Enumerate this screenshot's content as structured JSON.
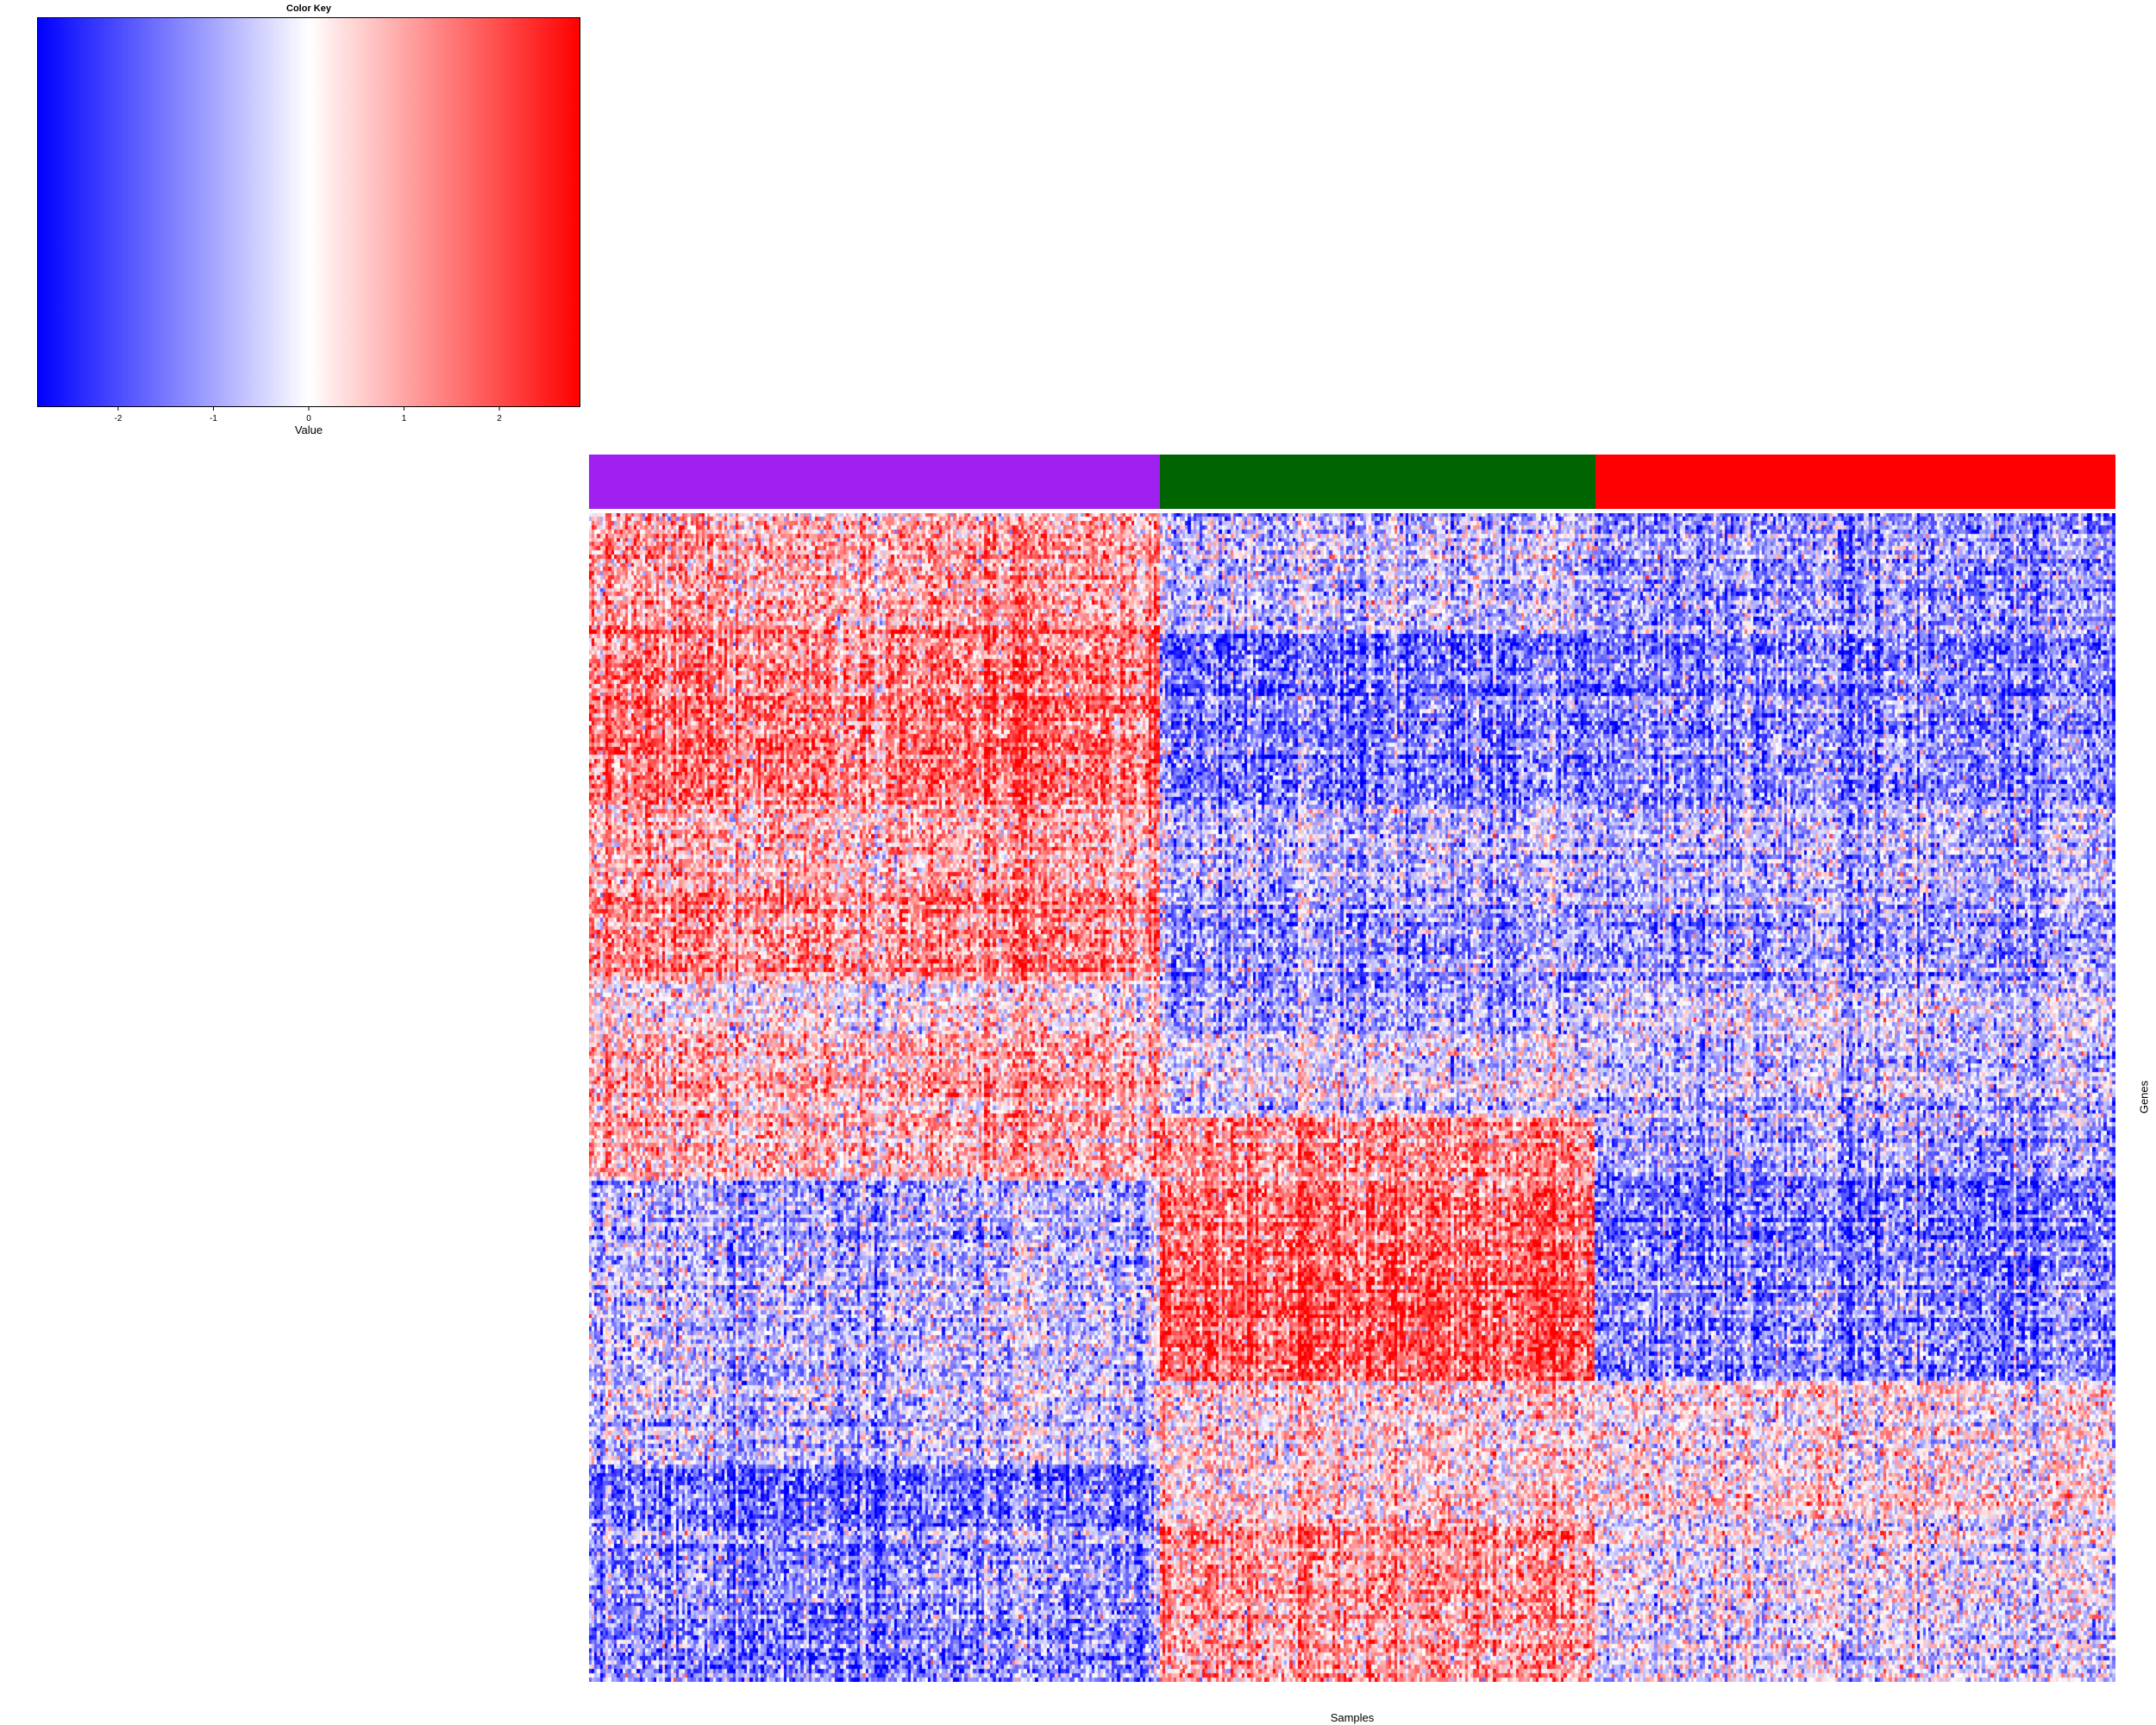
{
  "chart_data": [
    {
      "type": "color-scale",
      "title": "Color Key",
      "xlabel": "Value",
      "range": [
        -2.85,
        2.85
      ],
      "ticks": [
        -2,
        -1,
        0,
        1,
        2
      ],
      "tick_labels": [
        "-2",
        "-1",
        "0",
        "1",
        "2"
      ],
      "colors": {
        "low": "#0000ff",
        "mid": "#ffffff",
        "high": "#ff0000"
      }
    },
    {
      "type": "heatmap",
      "xlabel": "Samples",
      "ylabel": "Genes",
      "n_columns": 540,
      "n_rows": 280,
      "groups": [
        {
          "color": "#a020f0",
          "samples": 202
        },
        {
          "color": "#006400",
          "samples": 154
        },
        {
          "color": "#ff0000",
          "samples": 184
        }
      ],
      "row_blocks": [
        {
          "rows": 28,
          "means": [
            1.0,
            -0.6,
            -1.1
          ]
        },
        {
          "rows": 42,
          "means": [
            1.6,
            -1.4,
            -1.2
          ]
        },
        {
          "rows": 20,
          "means": [
            1.0,
            -0.6,
            -0.6
          ]
        },
        {
          "rows": 22,
          "means": [
            1.4,
            -1.0,
            -0.9
          ]
        },
        {
          "rows": 13,
          "means": [
            0.3,
            -0.8,
            -0.3
          ]
        },
        {
          "rows": 20,
          "means": [
            0.8,
            -0.3,
            -0.7
          ]
        },
        {
          "rows": 15,
          "means": [
            0.7,
            1.2,
            -1.1
          ]
        },
        {
          "rows": 48,
          "means": [
            -0.7,
            1.9,
            -1.3
          ]
        },
        {
          "rows": 20,
          "means": [
            -0.6,
            0.4,
            0.2
          ]
        },
        {
          "rows": 13,
          "means": [
            -1.6,
            0.5,
            0.4
          ]
        },
        {
          "rows": 39,
          "means": [
            -1.3,
            1.1,
            -0.2
          ]
        }
      ]
    }
  ]
}
